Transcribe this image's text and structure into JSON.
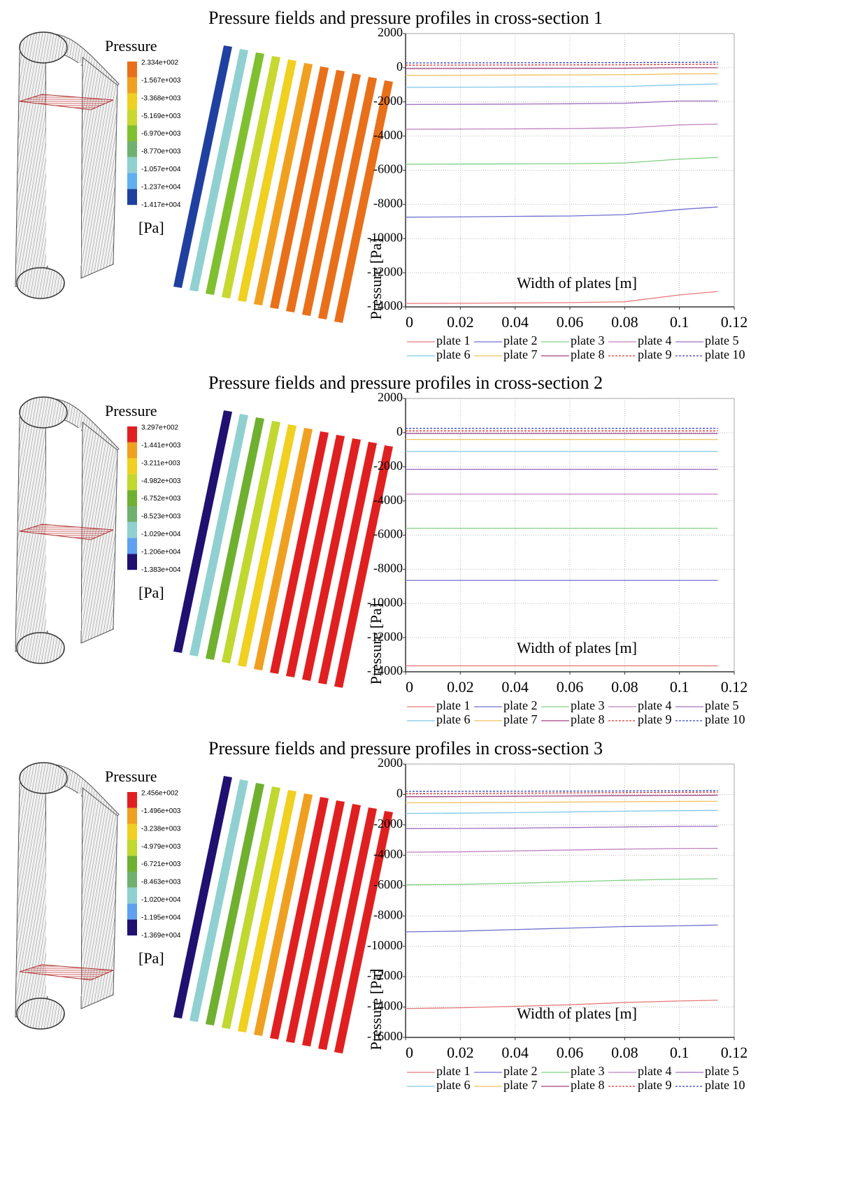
{
  "chart_data": [
    {
      "type": "line",
      "title": "Pressure fields and pressure profiles in cross-section 1",
      "xlabel": "Width of plates [m]",
      "ylabel": "Pressure [Pa]",
      "colorbar": {
        "title": "Pressure",
        "unit": "[Pa]",
        "labels": [
          "2.334e+002",
          "-1.567e+003",
          "-3.368e+003",
          "-5.169e+003",
          "-6.970e+003",
          "-8.770e+003",
          "-1.057e+004",
          "-1.237e+004",
          "-1.417e+004"
        ],
        "colors": [
          "#e8701a",
          "#f0a020",
          "#f0d020",
          "#c8d830",
          "#80c030",
          "#70b070",
          "#90d0d0",
          "#60b0f0",
          "#2040a0"
        ]
      },
      "x": [
        0,
        0.02,
        0.04,
        0.06,
        0.08,
        0.1,
        0.114
      ],
      "xlim": [
        0,
        0.12
      ],
      "xticks": [
        0,
        0.02,
        0.04,
        0.06,
        0.08,
        0.1,
        0.12
      ],
      "ylim": [
        -14000,
        2000
      ],
      "yticks": [
        2000,
        0,
        -2000,
        -4000,
        -6000,
        -8000,
        -10000,
        -12000,
        -14000
      ],
      "grid": true,
      "series": [
        {
          "name": "plate 1",
          "color": "#e87a7a",
          "values": [
            -13800,
            -13790,
            -13770,
            -13750,
            -13700,
            -13300,
            -13100
          ]
        },
        {
          "name": "plate 2",
          "color": "#7070d0",
          "values": [
            -8750,
            -8730,
            -8700,
            -8680,
            -8600,
            -8300,
            -8150
          ]
        },
        {
          "name": "plate 3",
          "color": "#80d080",
          "values": [
            -5650,
            -5640,
            -5630,
            -5620,
            -5580,
            -5350,
            -5250
          ]
        },
        {
          "name": "plate 4",
          "color": "#c080c0",
          "values": [
            -3600,
            -3590,
            -3580,
            -3560,
            -3520,
            -3350,
            -3300
          ]
        },
        {
          "name": "plate 5",
          "color": "#a070c0",
          "values": [
            -2150,
            -2140,
            -2130,
            -2110,
            -2080,
            -1950,
            -1950
          ]
        },
        {
          "name": "plate 6",
          "color": "#80c8e8",
          "values": [
            -1150,
            -1140,
            -1130,
            -1120,
            -1100,
            -1000,
            -950
          ]
        },
        {
          "name": "plate 7",
          "color": "#f0c060",
          "values": [
            -450,
            -440,
            -430,
            -420,
            -410,
            -360,
            -350
          ]
        },
        {
          "name": "plate 8",
          "color": "#a04080",
          "values": [
            -50,
            -45,
            -40,
            -35,
            -30,
            0,
            0
          ]
        },
        {
          "name": "plate 9",
          "color": "#e03030",
          "dashed": true,
          "values": [
            150,
            155,
            160,
            165,
            170,
            190,
            200
          ]
        },
        {
          "name": "plate 10",
          "color": "#3040c0",
          "dashed": true,
          "values": [
            280,
            285,
            290,
            295,
            300,
            310,
            320
          ]
        }
      ]
    },
    {
      "type": "line",
      "title": "Pressure fields and pressure profiles in cross-section 2",
      "xlabel": "Width of plates [m]",
      "ylabel": "Pressure [Pa]",
      "colorbar": {
        "title": "Pressure",
        "unit": "[Pa]",
        "labels": [
          "3.297e+002",
          "-1.441e+003",
          "-3.211e+003",
          "-4.982e+003",
          "-6.752e+003",
          "-8.523e+003",
          "-1.029e+004",
          "-1.206e+004",
          "-1.383e+004"
        ],
        "colors": [
          "#e02020",
          "#f0a020",
          "#f0d020",
          "#c0d830",
          "#70b030",
          "#70b070",
          "#90d0d0",
          "#60a0f0",
          "#201070"
        ]
      },
      "x": [
        0,
        0.02,
        0.04,
        0.06,
        0.08,
        0.1,
        0.114
      ],
      "xlim": [
        0,
        0.12
      ],
      "xticks": [
        0,
        0.02,
        0.04,
        0.06,
        0.08,
        0.1,
        0.12
      ],
      "ylim": [
        -14000,
        2000
      ],
      "yticks": [
        2000,
        0,
        -2000,
        -4000,
        -6000,
        -8000,
        -10000,
        -12000,
        -14000
      ],
      "grid": true,
      "series": [
        {
          "name": "plate 1",
          "color": "#e87a7a",
          "values": [
            -13650,
            -13650,
            -13650,
            -13650,
            -13650,
            -13650,
            -13650
          ]
        },
        {
          "name": "plate 2",
          "color": "#7070d0",
          "values": [
            -8650,
            -8650,
            -8650,
            -8650,
            -8650,
            -8650,
            -8650
          ]
        },
        {
          "name": "plate 3",
          "color": "#80d080",
          "values": [
            -5600,
            -5600,
            -5600,
            -5600,
            -5600,
            -5600,
            -5600
          ]
        },
        {
          "name": "plate 4",
          "color": "#c080c0",
          "values": [
            -3600,
            -3600,
            -3600,
            -3600,
            -3600,
            -3600,
            -3600
          ]
        },
        {
          "name": "plate 5",
          "color": "#a070c0",
          "values": [
            -2150,
            -2150,
            -2150,
            -2150,
            -2150,
            -2150,
            -2150
          ]
        },
        {
          "name": "plate 6",
          "color": "#80c8e8",
          "values": [
            -1100,
            -1100,
            -1100,
            -1100,
            -1100,
            -1100,
            -1100
          ]
        },
        {
          "name": "plate 7",
          "color": "#f0c060",
          "values": [
            -400,
            -400,
            -400,
            -400,
            -400,
            -400,
            -400
          ]
        },
        {
          "name": "plate 8",
          "color": "#a04080",
          "values": [
            -50,
            -50,
            -50,
            -50,
            -50,
            -50,
            -50
          ]
        },
        {
          "name": "plate 9",
          "color": "#e03030",
          "dashed": true,
          "values": [
            100,
            100,
            100,
            100,
            100,
            100,
            100
          ]
        },
        {
          "name": "plate 10",
          "color": "#3040c0",
          "dashed": true,
          "values": [
            250,
            250,
            250,
            250,
            250,
            250,
            250
          ]
        }
      ]
    },
    {
      "type": "line",
      "title": "Pressure fields and pressure profiles in cross-section 3",
      "xlabel": "Width of plates [m]",
      "ylabel": "Pressure [Pa]",
      "colorbar": {
        "title": "Pressure",
        "unit": "[Pa]",
        "labels": [
          "2.456e+002",
          "-1.496e+003",
          "-3.238e+003",
          "-4.979e+003",
          "-6.721e+003",
          "-8.463e+003",
          "-1.020e+004",
          "-1.195e+004",
          "-1.369e+004"
        ],
        "colors": [
          "#e02020",
          "#f0a020",
          "#f0d020",
          "#c0d830",
          "#70b030",
          "#70b070",
          "#90d0d0",
          "#60a0f0",
          "#201070"
        ]
      },
      "x": [
        0,
        0.02,
        0.04,
        0.06,
        0.08,
        0.1,
        0.114
      ],
      "xlim": [
        0,
        0.12
      ],
      "xticks": [
        0,
        0.02,
        0.04,
        0.06,
        0.08,
        0.1,
        0.12
      ],
      "ylim": [
        -16000,
        2000
      ],
      "yticks": [
        2000,
        0,
        -2000,
        -4000,
        -6000,
        -8000,
        -10000,
        -12000,
        -14000,
        -16000
      ],
      "grid": true,
      "series": [
        {
          "name": "plate 1",
          "color": "#e87a7a",
          "values": [
            -14100,
            -14050,
            -13950,
            -13850,
            -13700,
            -13600,
            -13550
          ]
        },
        {
          "name": "plate 2",
          "color": "#7070d0",
          "values": [
            -9050,
            -9000,
            -8900,
            -8800,
            -8700,
            -8650,
            -8600
          ]
        },
        {
          "name": "plate 3",
          "color": "#80d080",
          "values": [
            -5950,
            -5920,
            -5850,
            -5750,
            -5650,
            -5580,
            -5550
          ]
        },
        {
          "name": "plate 4",
          "color": "#c080c0",
          "values": [
            -3800,
            -3780,
            -3720,
            -3660,
            -3600,
            -3560,
            -3550
          ]
        },
        {
          "name": "plate 5",
          "color": "#a070c0",
          "values": [
            -2250,
            -2240,
            -2220,
            -2180,
            -2140,
            -2110,
            -2100
          ]
        },
        {
          "name": "plate 6",
          "color": "#80c8e8",
          "values": [
            -1250,
            -1230,
            -1200,
            -1150,
            -1100,
            -1070,
            -1050
          ]
        },
        {
          "name": "plate 7",
          "color": "#f0c060",
          "values": [
            -550,
            -540,
            -520,
            -500,
            -480,
            -460,
            -450
          ]
        },
        {
          "name": "plate 8",
          "color": "#a04080",
          "values": [
            -150,
            -140,
            -120,
            -100,
            -80,
            -60,
            -50
          ]
        },
        {
          "name": "plate 9",
          "color": "#e03030",
          "dashed": true,
          "values": [
            50,
            60,
            80,
            100,
            120,
            140,
            150
          ]
        },
        {
          "name": "plate 10",
          "color": "#3040c0",
          "dashed": true,
          "values": [
            200,
            205,
            210,
            220,
            230,
            240,
            250
          ]
        }
      ]
    }
  ]
}
